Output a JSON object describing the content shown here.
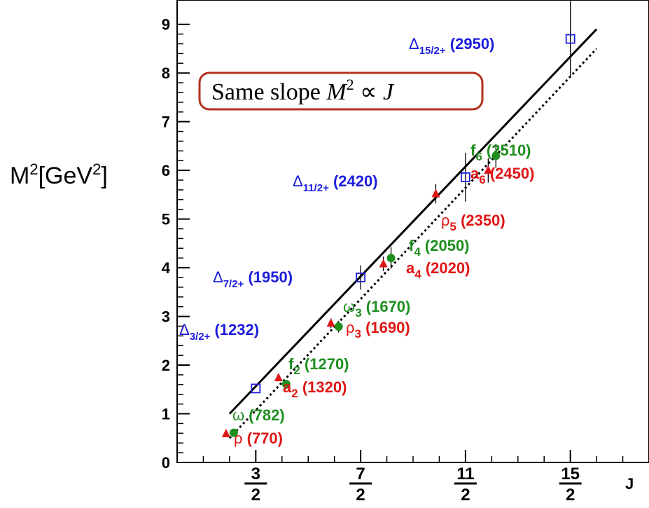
{
  "chart_data": {
    "type": "scatter",
    "xlabel": "J",
    "ylabel": "M²[GeV²]",
    "xlim": [
      0,
      9
    ],
    "ylim": [
      0,
      9.5
    ],
    "y_ticks": [
      "0",
      "1",
      "2",
      "3",
      "4",
      "5",
      "6",
      "7",
      "8",
      "9"
    ],
    "x_ticks": [
      {
        "value": 1.5,
        "num": "3",
        "den": "2"
      },
      {
        "value": 3.5,
        "num": "7",
        "den": "2"
      },
      {
        "value": 5.5,
        "num": "11",
        "den": "2"
      },
      {
        "value": 7.5,
        "num": "15",
        "den": "2"
      }
    ],
    "annotation_box": "Same slope M² ∝ J",
    "colors": {
      "delta": "#1c1cdd",
      "rho_a": "#e01515",
      "omega_f": "#1f8f1f",
      "line": "#000000",
      "box_border": "#b3311c"
    },
    "series": [
      {
        "name": "Δ",
        "marker": "open-square",
        "color": "#1c1cdd",
        "points": [
          {
            "x": 1.5,
            "y": 1.52,
            "err": 0.0,
            "label": "Δ3/2+ (1232)"
          },
          {
            "x": 3.5,
            "y": 3.8,
            "err": 0.25,
            "label": "Δ7/2+ (1950)"
          },
          {
            "x": 5.5,
            "y": 5.86,
            "err": 0.5,
            "label": "Δ11/2+ (2420)"
          },
          {
            "x": 7.5,
            "y": 8.7,
            "err": 0.78,
            "label": "Δ15/2+ (2950)"
          }
        ]
      },
      {
        "name": "ρ, a",
        "marker": "triangle",
        "color": "#e01515",
        "points": [
          {
            "x": 1.0,
            "y": 0.59,
            "err": 0.0,
            "label": "ρ (770)"
          },
          {
            "x": 2.0,
            "y": 1.74,
            "err": 0.0,
            "label": "a2 (1320)"
          },
          {
            "x": 3.0,
            "y": 2.86,
            "err": 0.1,
            "label": "ρ3 (1690)"
          },
          {
            "x": 4.0,
            "y": 4.08,
            "err": 0.15,
            "label": "a4 (2020)"
          },
          {
            "x": 5.0,
            "y": 5.52,
            "err": 0.2,
            "label": "ρ5 (2350)"
          },
          {
            "x": 6.0,
            "y": 6.0,
            "err": 0.25,
            "label": "a6 (2450)"
          }
        ]
      },
      {
        "name": "ω, f",
        "marker": "circle",
        "color": "#1f8f1f",
        "points": [
          {
            "x": 1.0,
            "y": 0.61,
            "err": 0.0,
            "label": "ω (782)"
          },
          {
            "x": 2.0,
            "y": 1.61,
            "err": 0.0,
            "label": "f2 (1270)"
          },
          {
            "x": 3.0,
            "y": 2.79,
            "err": 0.12,
            "label": "ω3 (1670)"
          },
          {
            "x": 4.0,
            "y": 4.2,
            "err": 0.22,
            "label": "f4 (2050)"
          },
          {
            "x": 6.0,
            "y": 6.3,
            "err": 0.25,
            "label": "f6 (2510)"
          }
        ]
      }
    ],
    "fit_lines": [
      {
        "style": "solid",
        "from": [
          1.0,
          1.0
        ],
        "to": [
          8.0,
          8.9
        ]
      },
      {
        "style": "dotted",
        "from": [
          1.0,
          0.5
        ],
        "to": [
          8.0,
          8.5
        ]
      }
    ]
  }
}
